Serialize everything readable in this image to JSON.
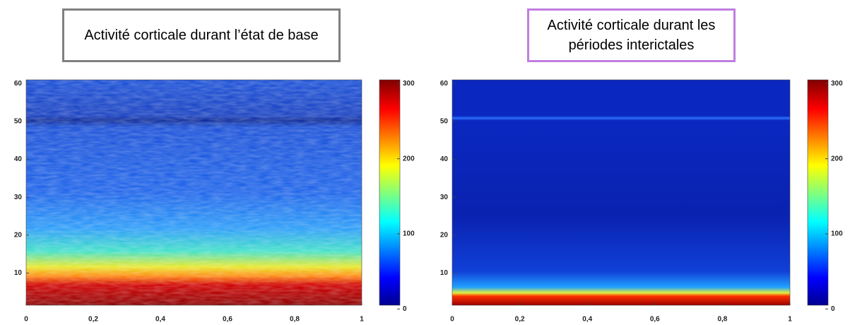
{
  "chart_data": [
    {
      "type": "heatmap",
      "title": "Activité corticale durant l’état de base",
      "colormap": "jet",
      "xlim": [
        0,
        1
      ],
      "xticks": [
        0,
        {
          "value": 0.2,
          "label": "0,2"
        },
        {
          "value": 0.4,
          "label": "0,4"
        },
        {
          "value": 0.6,
          "label": "0,6"
        },
        {
          "value": 0.8,
          "label": "0,8"
        },
        1
      ],
      "ylim": [
        1.5,
        61
      ],
      "yticks": [
        10,
        20,
        30,
        40,
        50,
        60
      ],
      "clim": [
        5,
        305
      ],
      "cticks": [
        0,
        100,
        200,
        300
      ],
      "title_border": "#808080"
    },
    {
      "type": "heatmap",
      "title": "Activité corticale durant les périodes interictales",
      "colormap": "jet",
      "xlim": [
        0,
        1
      ],
      "xticks": [
        0,
        {
          "value": 0.2,
          "label": "0,2"
        },
        {
          "value": 0.4,
          "label": "0,4"
        },
        {
          "value": 0.6,
          "label": "0,6"
        },
        {
          "value": 0.8,
          "label": "0,8"
        },
        1
      ],
      "ylim": [
        1.5,
        61
      ],
      "yticks": [
        10,
        20,
        30,
        40,
        50,
        60
      ],
      "clim": [
        5,
        305
      ],
      "cticks": [
        0,
        100,
        200,
        300
      ],
      "title_border": "#c07ee0"
    }
  ]
}
